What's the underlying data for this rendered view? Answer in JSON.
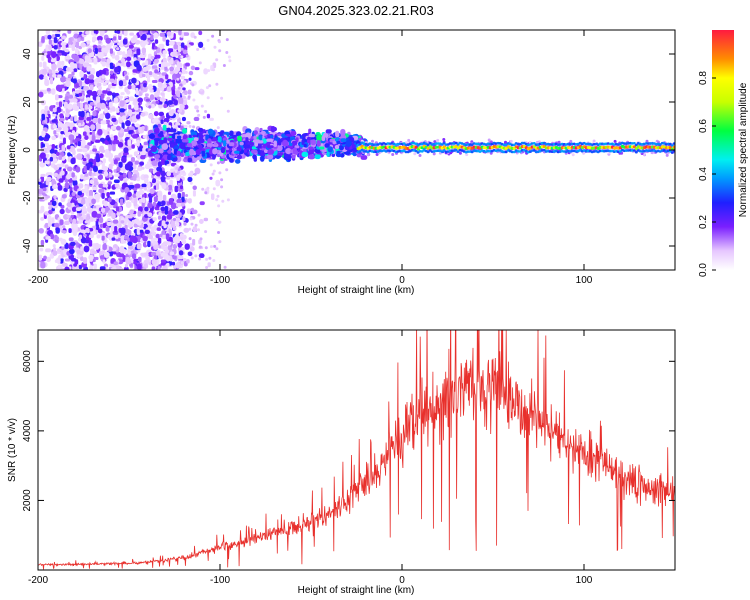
{
  "title": "GN04.2025.323.02.21.R03",
  "chart_data": [
    {
      "type": "heatmap",
      "name": "spectrogram",
      "xlabel": "Height of straight line (km)",
      "ylabel": "Frequency (Hz)",
      "xlim": [
        -200,
        150
      ],
      "ylim": [
        -50,
        50
      ],
      "xticks": [
        -200,
        -100,
        0,
        100
      ],
      "yticks": [
        -40,
        -20,
        0,
        20,
        40
      ],
      "colorbar": {
        "label": "Normalized spectral amplitude",
        "range": [
          0,
          1
        ],
        "ticks": [
          "0.0",
          "0.2",
          "0.4",
          "0.6",
          "0.8"
        ],
        "tick_values": [
          0.0,
          0.2,
          0.4,
          0.6,
          0.8
        ]
      },
      "description_regions": [
        {
          "x_range": [
            -200,
            -120
          ],
          "freq_spread": 50,
          "amplitude": 0.1
        },
        {
          "x_range": [
            -140,
            -25
          ],
          "freq_spread": 10,
          "amplitude": 0.25
        },
        {
          "x_range": [
            -25,
            150
          ],
          "freq_center": 1,
          "freq_spread": 3,
          "amplitude": 0.95
        }
      ]
    },
    {
      "type": "line",
      "name": "snr",
      "xlabel": "Height of straight line (km)",
      "ylabel": "SNR (10 * v/v)",
      "xlim": [
        -200,
        150
      ],
      "ylim": [
        0,
        6900
      ],
      "xticks": [
        -200,
        -100,
        0,
        100
      ],
      "yticks": [
        2000,
        4000,
        6000
      ],
      "color": "#e8302c",
      "envelope": {
        "x": [
          -200,
          -160,
          -140,
          -120,
          -100,
          -80,
          -60,
          -40,
          -30,
          -20,
          -10,
          0,
          10,
          20,
          30,
          40,
          50,
          60,
          70,
          80,
          90,
          100,
          110,
          120,
          130,
          140,
          150
        ],
        "y": [
          150,
          180,
          220,
          350,
          650,
          900,
          1200,
          1600,
          2000,
          2500,
          3100,
          3800,
          4400,
          4800,
          5000,
          5200,
          5300,
          4900,
          4500,
          4100,
          3700,
          3300,
          3000,
          2700,
          2500,
          2300,
          2200
        ]
      }
    }
  ],
  "colors": {
    "snr_line": "#e8302c",
    "axis": "#000000",
    "background": "#ffffff"
  }
}
